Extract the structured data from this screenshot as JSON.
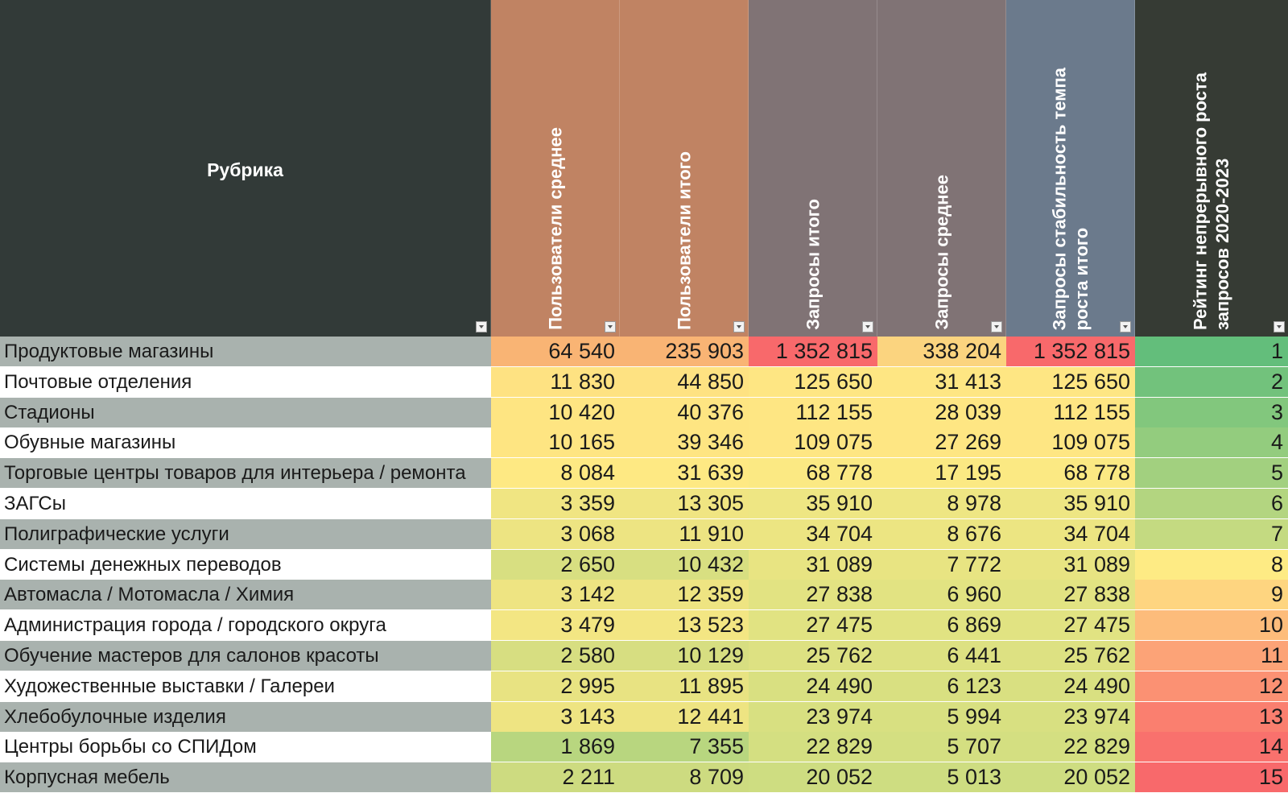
{
  "header": {
    "rubric": "Рубрика",
    "columns": [
      "Пользователи среднее",
      "Пользователи итого",
      "Запросы итого",
      "Запросы среднее",
      "Запросы стабильность темпа\nроста итого",
      "Рейтинг непрерывного роста\nзапросов 2020-2023"
    ]
  },
  "colors": {
    "rubric_header": "#323a38",
    "users_header": "#c08363",
    "requests_header": "#807375",
    "stability_header": "#6b7a8c",
    "rating_header": "#363b34",
    "row_gray": "#a9b2ae",
    "row_white": "#ffffff"
  },
  "rows": [
    {
      "name": "Продуктовые магазины",
      "users_avg": "64 540",
      "users_total": "235 903",
      "req_total": "1 352 815",
      "req_avg": "338 204",
      "stability": "1 352 815",
      "rank": "1"
    },
    {
      "name": "Почтовые отделения",
      "users_avg": "11 830",
      "users_total": "44 850",
      "req_total": "125 650",
      "req_avg": "31 413",
      "stability": "125 650",
      "rank": "2"
    },
    {
      "name": "Стадионы",
      "users_avg": "10 420",
      "users_total": "40 376",
      "req_total": "112 155",
      "req_avg": "28 039",
      "stability": "112 155",
      "rank": "3"
    },
    {
      "name": "Обувные магазины",
      "users_avg": "10 165",
      "users_total": "39 346",
      "req_total": "109 075",
      "req_avg": "27 269",
      "stability": "109 075",
      "rank": "4"
    },
    {
      "name": "Торговые центры товаров для интерьера / ремонта",
      "users_avg": "8 084",
      "users_total": "31 639",
      "req_total": "68 778",
      "req_avg": "17 195",
      "stability": "68 778",
      "rank": "5"
    },
    {
      "name": "ЗАГСы",
      "users_avg": "3 359",
      "users_total": "13 305",
      "req_total": "35 910",
      "req_avg": "8 978",
      "stability": "35 910",
      "rank": "6"
    },
    {
      "name": "Полиграфические услуги",
      "users_avg": "3 068",
      "users_total": "11 910",
      "req_total": "34 704",
      "req_avg": "8 676",
      "stability": "34 704",
      "rank": "7"
    },
    {
      "name": "Системы денежных переводов",
      "users_avg": "2 650",
      "users_total": "10 432",
      "req_total": "31 089",
      "req_avg": "7 772",
      "stability": "31 089",
      "rank": "8"
    },
    {
      "name": "Автомасла / Мотомасла / Химия",
      "users_avg": "3 142",
      "users_total": "12 359",
      "req_total": "27 838",
      "req_avg": "6 960",
      "stability": "27 838",
      "rank": "9"
    },
    {
      "name": "Администрация города / городского округа",
      "users_avg": "3 479",
      "users_total": "13 523",
      "req_total": "27 475",
      "req_avg": "6 869",
      "stability": "27 475",
      "rank": "10"
    },
    {
      "name": "Обучение мастеров для салонов красоты",
      "users_avg": "2 580",
      "users_total": "10 129",
      "req_total": "25 762",
      "req_avg": "6 441",
      "stability": "25 762",
      "rank": "11"
    },
    {
      "name": "Художественные выставки / Галереи",
      "users_avg": "2 995",
      "users_total": "11 895",
      "req_total": "24 490",
      "req_avg": "6 123",
      "stability": "24 490",
      "rank": "12"
    },
    {
      "name": "Хлебобулочные изделия",
      "users_avg": "3 143",
      "users_total": "12 441",
      "req_total": "23 974",
      "req_avg": "5 994",
      "stability": "23 974",
      "rank": "13"
    },
    {
      "name": "Центры борьбы со СПИДом",
      "users_avg": "1 869",
      "users_total": "7 355",
      "req_total": "22 829",
      "req_avg": "5 707",
      "stability": "22 829",
      "rank": "14"
    },
    {
      "name": "Корпусная мебель",
      "users_avg": "2 211",
      "users_total": "8 709",
      "req_total": "20 052",
      "req_avg": "5 013",
      "stability": "20 052",
      "rank": "15"
    }
  ],
  "cell_colors": [
    [
      "#f9b474",
      "#f9b474",
      "#f8696b",
      "#fbd47f",
      "#f8696b",
      "#63be7b"
    ],
    [
      "#fee282",
      "#fee282",
      "#fee683",
      "#fee683",
      "#fee683",
      "#72c27c"
    ],
    [
      "#fee582",
      "#fee582",
      "#fee683",
      "#fee683",
      "#fee683",
      "#82c77d"
    ],
    [
      "#fee582",
      "#fee582",
      "#fee683",
      "#fee683",
      "#fee683",
      "#93cc7e"
    ],
    [
      "#fee983",
      "#fee983",
      "#fbe983",
      "#fbe983",
      "#fbe983",
      "#a2d07f"
    ],
    [
      "#f0e582",
      "#f0e582",
      "#eee683",
      "#eee683",
      "#eee683",
      "#b3d580"
    ],
    [
      "#ede482",
      "#ede482",
      "#ece582",
      "#ece582",
      "#ece582",
      "#c4da81"
    ],
    [
      "#d8df81",
      "#d8df81",
      "#e8e482",
      "#e8e482",
      "#e8e482",
      "#feeb84"
    ],
    [
      "#eee482",
      "#eee482",
      "#e2e382",
      "#e2e382",
      "#e2e382",
      "#fed580"
    ],
    [
      "#f3e683",
      "#f3e683",
      "#e1e382",
      "#e1e382",
      "#e1e382",
      "#fdbc7b"
    ],
    [
      "#d7de81",
      "#d7de81",
      "#dde182",
      "#dde182",
      "#dde182",
      "#fca377"
    ],
    [
      "#e8e382",
      "#e8e382",
      "#d9e081",
      "#d9e081",
      "#d9e081",
      "#fb9173"
    ],
    [
      "#eee482",
      "#eee482",
      "#d8e081",
      "#d8e081",
      "#d8e081",
      "#fa7f6f"
    ],
    [
      "#b8d67f",
      "#b8d67f",
      "#d4df81",
      "#d4df81",
      "#d4df81",
      "#f9716d"
    ],
    [
      "#cddb80",
      "#cddb80",
      "#cedd81",
      "#cedd81",
      "#cedd81",
      "#f8696b"
    ]
  ]
}
